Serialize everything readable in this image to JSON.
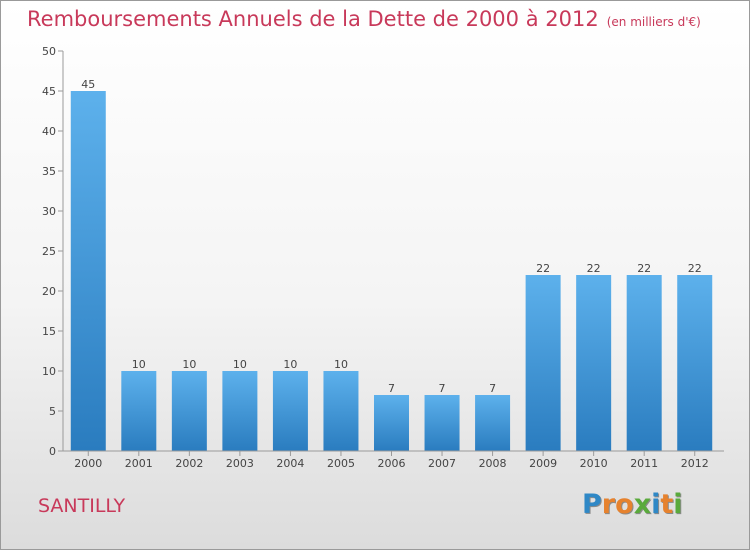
{
  "title": "Remboursements Annuels de la Dette de 2000 à 2012",
  "subtitle": "(en milliers d'€)",
  "commune": "SANTILLY",
  "logo": {
    "letters": [
      "P",
      "r",
      "o",
      "x",
      "i",
      "t",
      "i"
    ],
    "colors": [
      "#2f88c6",
      "#e6822e",
      "#e6822e",
      "#5aaa3c",
      "#2f88c6",
      "#e6822e",
      "#5aaa3c"
    ]
  },
  "chart_data": {
    "type": "bar",
    "categories": [
      "2000",
      "2001",
      "2002",
      "2003",
      "2004",
      "2005",
      "2006",
      "2007",
      "2008",
      "2009",
      "2010",
      "2011",
      "2012"
    ],
    "values": [
      45,
      10,
      10,
      10,
      10,
      10,
      7,
      7,
      7,
      22,
      22,
      22,
      22
    ],
    "ylim": [
      0,
      50
    ],
    "yticks": [
      0,
      5,
      10,
      15,
      20,
      25,
      30,
      35,
      40,
      45,
      50
    ],
    "grid": false,
    "bar_color": "#4a9fe0",
    "title_color": "#c8395a"
  }
}
